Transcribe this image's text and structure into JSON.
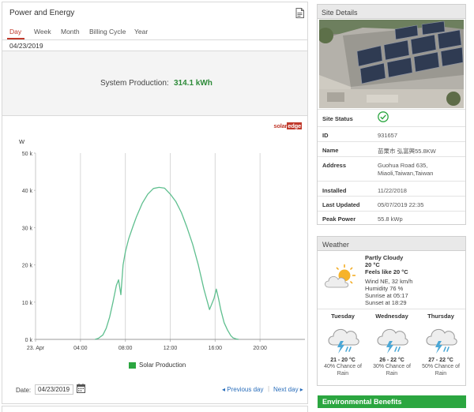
{
  "panel": {
    "title": "Power and Energy",
    "tabs": [
      {
        "label": "Day",
        "active": true
      },
      {
        "label": "Week",
        "active": false
      },
      {
        "label": "Month",
        "active": false
      },
      {
        "label": "Billing Cycle",
        "active": false
      },
      {
        "label": "Year",
        "active": false
      }
    ],
    "selected_date": "04/23/2019",
    "production_label": "System Production:",
    "production_value": "314.1 kWh",
    "brand": {
      "solar": "solar",
      "edge": "edge"
    },
    "legend": "Solar Production",
    "footer": {
      "date_label": "Date:",
      "date_value": "04/23/2019",
      "prev": "◂ Previous day",
      "sep": "|",
      "next": "Next day ▸"
    }
  },
  "chart_data": {
    "type": "line",
    "title": "",
    "xlabel": "",
    "ylabel": "W",
    "y_ticks": [
      "0 k",
      "10 k",
      "20 k",
      "30 k",
      "40 k",
      "50 k"
    ],
    "x_ticks": [
      "23. Apr",
      "04:00",
      "08:00",
      "12:00",
      "16:00",
      "20:00"
    ],
    "x_tick_hours": [
      0,
      4,
      8,
      12,
      16,
      20
    ],
    "ylim": [
      0,
      50000
    ],
    "xlim_hours": [
      0,
      24
    ],
    "grid": "vertical",
    "series": [
      {
        "name": "Solar Production",
        "color": "#5fbf8f",
        "x": [
          5.3,
          5.6,
          6.0,
          6.3,
          6.6,
          6.9,
          7.2,
          7.4,
          7.6,
          7.8,
          8.0,
          8.3,
          8.7,
          9.0,
          9.5,
          10.0,
          10.5,
          11.0,
          11.5,
          12.0,
          12.5,
          13.0,
          13.5,
          14.0,
          14.5,
          15.0,
          15.5,
          15.9,
          16.1,
          16.3,
          16.5,
          16.8,
          17.1,
          17.4,
          17.6,
          17.9,
          18.1
        ],
        "y": [
          0,
          300,
          1200,
          3000,
          6000,
          10000,
          14500,
          16000,
          12000,
          20000,
          23500,
          27000,
          30500,
          33000,
          36500,
          39000,
          40500,
          40800,
          40600,
          39000,
          37000,
          34000,
          30000,
          25500,
          20000,
          13500,
          8000,
          11000,
          13500,
          11000,
          8000,
          4500,
          2500,
          1000,
          400,
          100,
          0
        ]
      }
    ]
  },
  "site": {
    "title": "Site Details",
    "rows": [
      {
        "key": "Site Status",
        "value": ""
      },
      {
        "key": "ID",
        "value": "931657"
      },
      {
        "key": "Name",
        "value": "苗栗市 弘富興55.8KW"
      },
      {
        "key": "Address",
        "value": "Guohua Road 635,",
        "value2": "Miaoli,Taiwan,Taiwan"
      },
      {
        "key": "Installed",
        "value": "11/22/2018"
      },
      {
        "key": "Last Updated",
        "value": "05/07/2019 22:35"
      },
      {
        "key": "Peak Power",
        "value": "55.8 kWp"
      }
    ]
  },
  "weather": {
    "title": "Weather",
    "now": {
      "condition": "Partly Cloudy",
      "temp": "20 °C",
      "feels": "Feels like 20 °C",
      "wind": "Wind NE, 32 km/h",
      "humidity": "Humidity 76 %",
      "sunrise": "Sunrise at 05:17",
      "sunset": "Sunset at 18:29"
    },
    "forecast": [
      {
        "day": "Tuesday",
        "temp": "21 - 20 °C",
        "rain1": "40% Chance of",
        "rain2": "Rain"
      },
      {
        "day": "Wednesday",
        "temp": "26 - 22 °C",
        "rain1": "30% Chance of",
        "rain2": "Rain"
      },
      {
        "day": "Thursday",
        "temp": "27 - 22 °C",
        "rain1": "50% Chance of",
        "rain2": "Rain"
      }
    ]
  },
  "environment": {
    "title": "Environmental Benefits"
  },
  "colors": {
    "accent": "#c0392b",
    "production": "#2e8b3a",
    "link": "#2a6ebb",
    "env": "#2ba640"
  }
}
